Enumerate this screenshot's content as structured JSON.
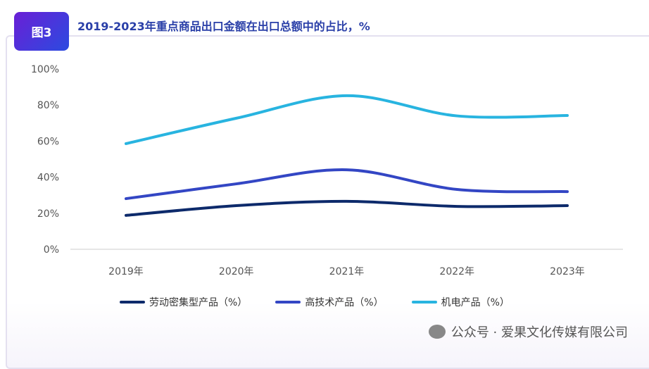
{
  "badge": "图3",
  "chart_data": {
    "type": "line",
    "title": "2019-2023年重点商品出口金额在出口总额中的占比，%",
    "categories": [
      "2019年",
      "2020年",
      "2021年",
      "2022年",
      "2023年"
    ],
    "ylim": [
      0,
      100
    ],
    "yticks": [
      "0%",
      "20%",
      "40%",
      "60%",
      "80%",
      "100%"
    ],
    "series": [
      {
        "name": "劳动密集型产品（%）",
        "color": "#0d2a6b",
        "values": [
          18.8,
          24.2,
          26.6,
          23.8,
          24.2
        ]
      },
      {
        "name": "高技术产品（%）",
        "color": "#3346c4",
        "values": [
          28.1,
          36.3,
          44.1,
          33.2,
          32.0
        ]
      },
      {
        "name": "机电产品（%）",
        "color": "#28b4e0",
        "values": [
          58.6,
          72.7,
          85.2,
          74.0,
          74.2
        ]
      }
    ],
    "grid": false,
    "legend": "bottom"
  },
  "watermark": "公众号 · 爱果文化传媒有限公司"
}
